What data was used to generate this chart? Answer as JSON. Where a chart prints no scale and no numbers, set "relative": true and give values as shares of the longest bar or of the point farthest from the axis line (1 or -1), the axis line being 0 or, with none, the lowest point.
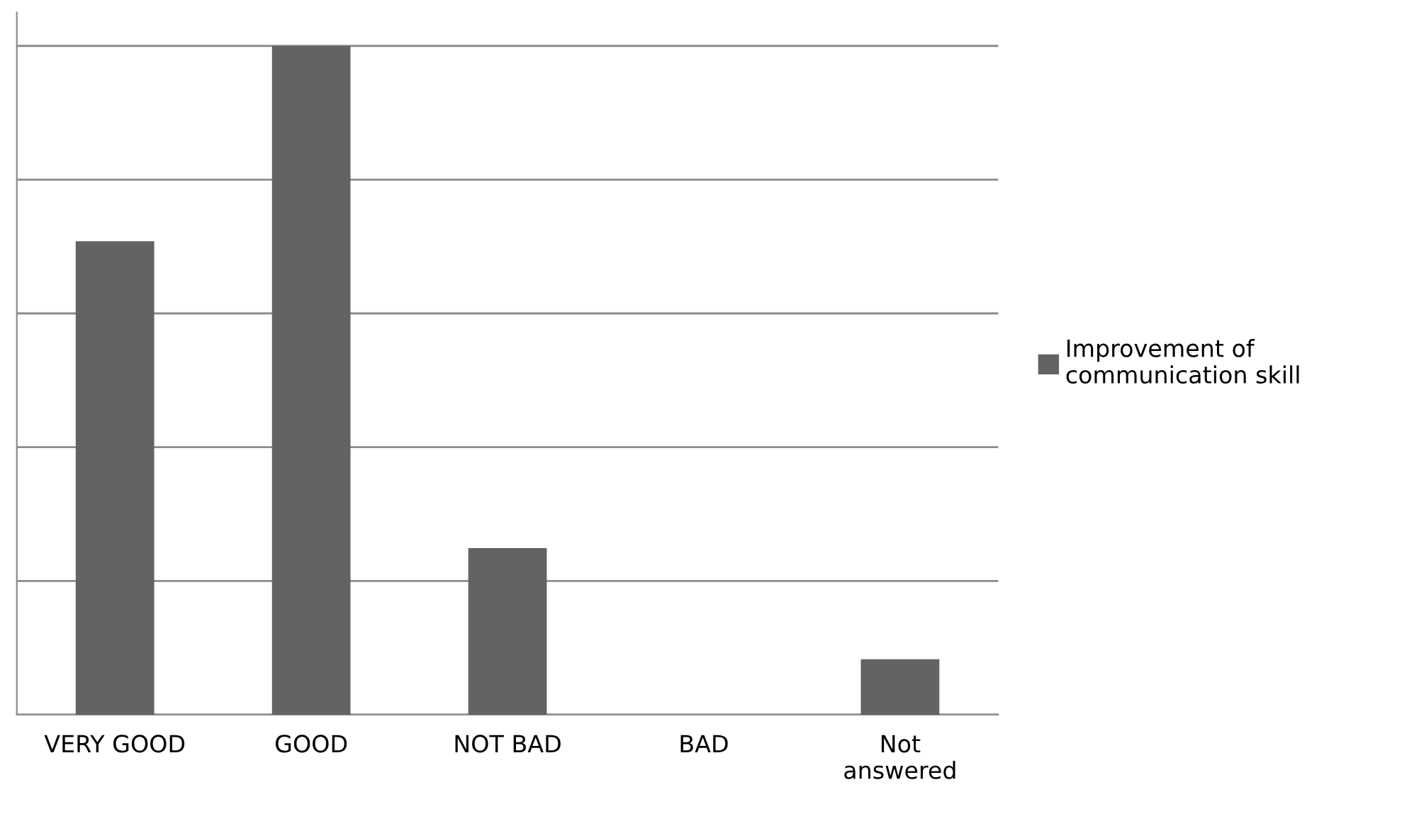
{
  "chart_data": {
    "type": "bar",
    "relative": true,
    "categories": [
      "VERY GOOD",
      "GOOD",
      "NOT BAD",
      "BAD",
      "Not\nanswered"
    ],
    "series": [
      {
        "name": "Improvement of\ncommunication skill",
        "color": "#636363",
        "values": [
          0.708,
          1,
          0.249,
          0,
          0.083
        ]
      }
    ],
    "grid": "y",
    "legend": "right"
  }
}
